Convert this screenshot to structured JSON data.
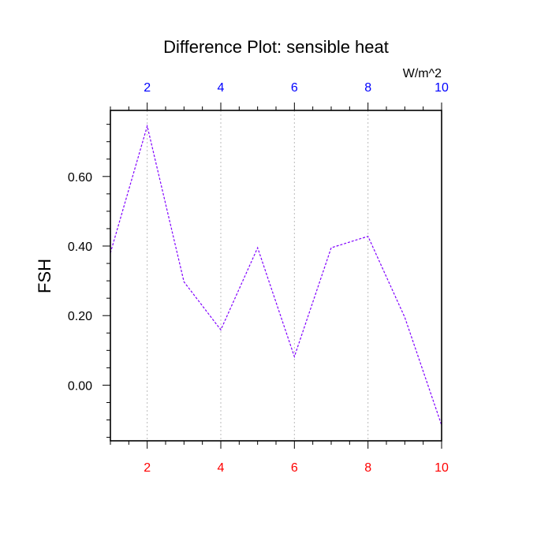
{
  "chart_data": {
    "type": "line",
    "title": "Difference Plot: sensible heat",
    "units_label": "W/m^2",
    "ylabel": "FSH",
    "xlabel": "",
    "xlim": [
      1,
      10
    ],
    "ylim": [
      -0.16,
      0.79
    ],
    "x_ticks": [
      2,
      4,
      6,
      8,
      10
    ],
    "x_tick_labels": [
      "2",
      "4",
      "6",
      "8",
      "10"
    ],
    "y_ticks": [
      0.0,
      0.2,
      0.4,
      0.6
    ],
    "y_tick_labels": [
      "0.00",
      "0.20",
      "0.40",
      "0.60"
    ],
    "top_tick_color": "#0000ff",
    "bottom_tick_color": "#ff0000",
    "series": [
      {
        "color": "#8000ff",
        "line_style": "dashed",
        "x": [
          1,
          2,
          3,
          4,
          5,
          6,
          7,
          8,
          9,
          10
        ],
        "y": [
          0.38,
          0.745,
          0.297,
          0.159,
          0.395,
          0.082,
          0.395,
          0.428,
          0.195,
          -0.115
        ]
      }
    ],
    "grid": "vertical-dotted"
  }
}
